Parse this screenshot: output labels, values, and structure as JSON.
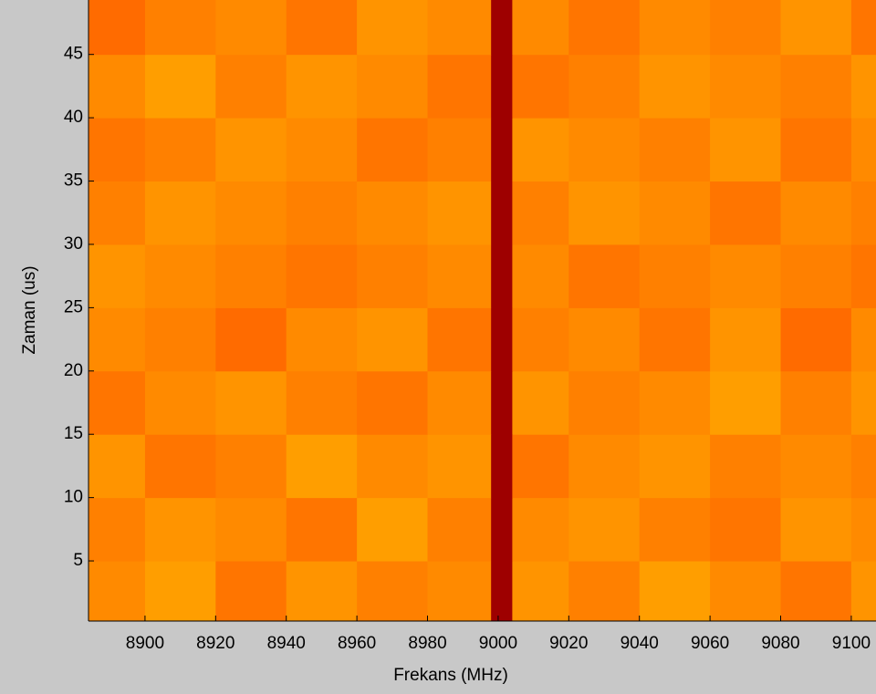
{
  "chart_data": {
    "type": "heatmap",
    "xlabel": "Frekans (MHz)",
    "ylabel": "Zaman (us)",
    "x": [
      8884,
      8900,
      8920,
      8940,
      8960,
      8980,
      8998,
      9004,
      9020,
      9040,
      9060,
      9080,
      9100,
      9107
    ],
    "y": [
      0.25,
      5,
      10,
      15,
      20,
      25,
      30,
      35,
      40,
      45,
      49.3
    ],
    "values": [
      [
        0.74,
        0.72,
        0.76,
        0.73,
        0.75,
        0.74,
        0.97,
        0.73,
        0.75,
        0.72,
        0.74,
        0.76,
        0.73
      ],
      [
        0.75,
        0.73,
        0.74,
        0.76,
        0.72,
        0.75,
        0.97,
        0.74,
        0.73,
        0.75,
        0.76,
        0.73,
        0.74
      ],
      [
        0.73,
        0.76,
        0.75,
        0.72,
        0.74,
        0.73,
        0.97,
        0.76,
        0.74,
        0.73,
        0.75,
        0.74,
        0.75
      ],
      [
        0.76,
        0.74,
        0.73,
        0.75,
        0.76,
        0.74,
        0.97,
        0.73,
        0.75,
        0.74,
        0.72,
        0.75,
        0.73
      ],
      [
        0.74,
        0.75,
        0.77,
        0.74,
        0.73,
        0.76,
        0.97,
        0.75,
        0.74,
        0.76,
        0.73,
        0.77,
        0.74
      ],
      [
        0.73,
        0.74,
        0.75,
        0.76,
        0.75,
        0.74,
        0.97,
        0.74,
        0.76,
        0.75,
        0.74,
        0.75,
        0.76
      ],
      [
        0.75,
        0.73,
        0.74,
        0.75,
        0.74,
        0.73,
        0.97,
        0.75,
        0.73,
        0.74,
        0.76,
        0.74,
        0.75
      ],
      [
        0.76,
        0.75,
        0.73,
        0.74,
        0.76,
        0.75,
        0.97,
        0.73,
        0.74,
        0.75,
        0.73,
        0.76,
        0.74
      ],
      [
        0.74,
        0.72,
        0.75,
        0.73,
        0.74,
        0.76,
        0.97,
        0.76,
        0.75,
        0.73,
        0.74,
        0.75,
        0.73
      ],
      [
        0.77,
        0.75,
        0.74,
        0.76,
        0.73,
        0.74,
        0.97,
        0.74,
        0.76,
        0.74,
        0.75,
        0.73,
        0.76
      ]
    ],
    "colormap": "jet",
    "zlim": [
      0,
      1
    ],
    "xlim": [
      8884,
      9107
    ],
    "ylim": [
      0.25,
      49.3
    ],
    "xticks": [
      8900,
      8920,
      8940,
      8960,
      8980,
      9000,
      9020,
      9040,
      9060,
      9080,
      9100
    ],
    "yticks": [
      5,
      10,
      15,
      20,
      25,
      30,
      35,
      40,
      45
    ]
  }
}
